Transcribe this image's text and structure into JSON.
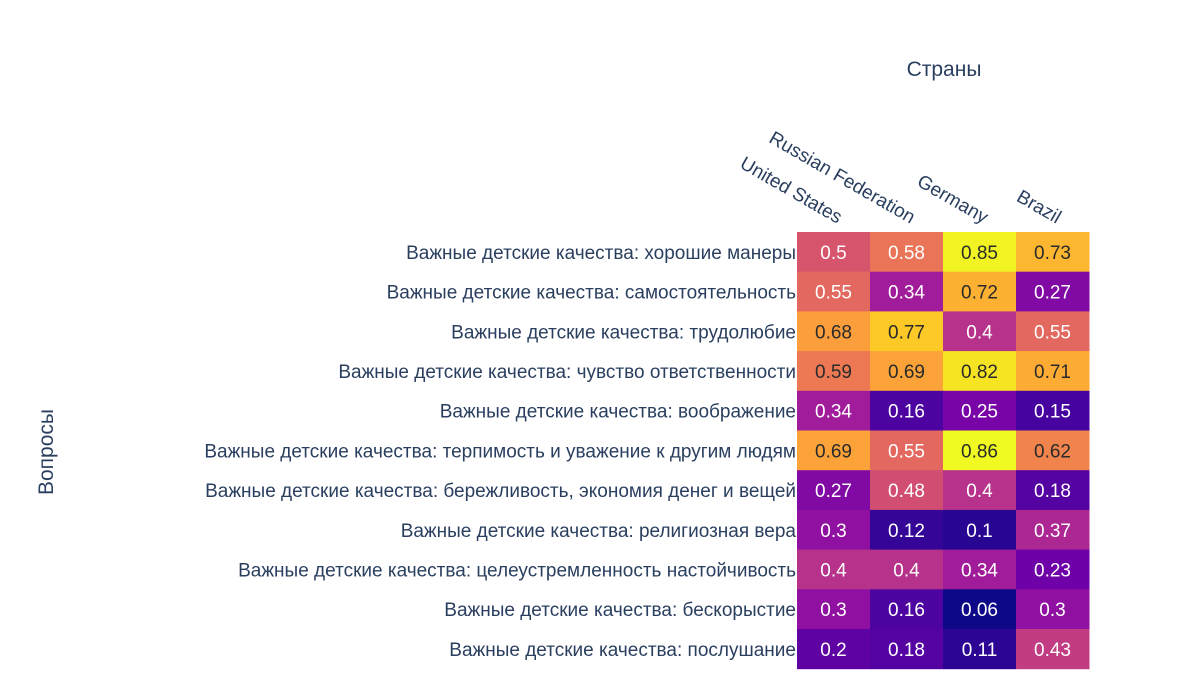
{
  "chart_data": {
    "type": "heatmap",
    "xlabel": "Страны",
    "ylabel": "Вопросы",
    "x": [
      "United States",
      "Russian Federation",
      "Germany",
      "Brazil"
    ],
    "y": [
      "Важные детские качества: хорошие манеры",
      "Важные детские качества: самостоятельность",
      "Важные детские качества: трудолюбие",
      "Важные детские качества: чувство ответственности",
      "Важные детские качества: воображение",
      "Важные детские качества: терпимость и уважение к другим людям",
      "Важные детские качества: бережливость, экономия денег и вещей",
      "Важные детские качества: религиозная вера",
      "Важные детские качества: целеустремленность настойчивость",
      "Важные детские качества: бескорыстие",
      "Важные детские качества: послушание"
    ],
    "z": [
      [
        0.5,
        0.58,
        0.85,
        0.73
      ],
      [
        0.55,
        0.34,
        0.72,
        0.27
      ],
      [
        0.68,
        0.77,
        0.4,
        0.55
      ],
      [
        0.59,
        0.69,
        0.82,
        0.71
      ],
      [
        0.34,
        0.16,
        0.25,
        0.15
      ],
      [
        0.69,
        0.55,
        0.86,
        0.62
      ],
      [
        0.27,
        0.48,
        0.4,
        0.18
      ],
      [
        0.3,
        0.12,
        0.1,
        0.37
      ],
      [
        0.4,
        0.4,
        0.34,
        0.23
      ],
      [
        0.3,
        0.16,
        0.06,
        0.3
      ],
      [
        0.2,
        0.18,
        0.11,
        0.43
      ]
    ],
    "colorscale": "plasma",
    "x_axis_position": "top",
    "x_tick_angle": 30,
    "text_auto": true
  }
}
